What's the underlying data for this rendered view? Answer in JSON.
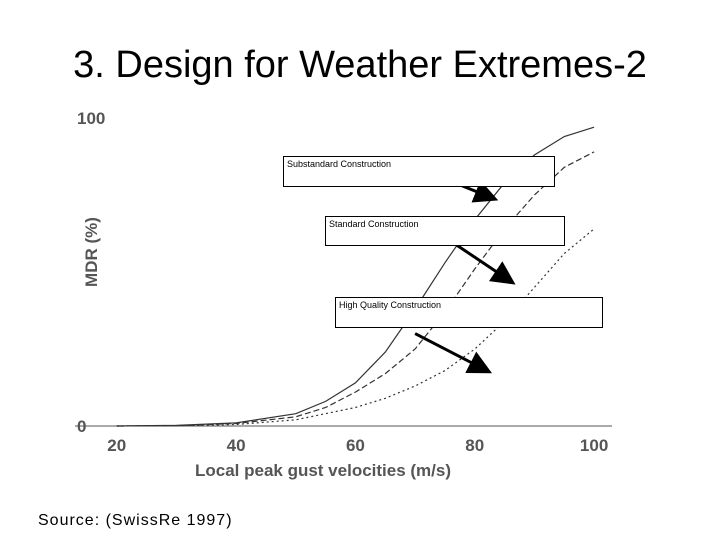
{
  "slide": {
    "title": "3. Design for Weather Extremes-2"
  },
  "source": "Source: (SwissRe 1997)",
  "chart_data": {
    "type": "line",
    "title": "",
    "xlabel": "Local peak gust velocities (m/s)",
    "ylabel": "MDR (%)",
    "xlim": [
      13,
      103
    ],
    "ylim": [
      0,
      100
    ],
    "x_ticks": [
      20,
      40,
      60,
      80,
      100
    ],
    "y_ticks": [
      0,
      100
    ],
    "grid": false,
    "series": [
      {
        "name": "Substandard Construction",
        "style": "solid",
        "x": [
          20,
          30,
          40,
          50,
          55,
          60,
          65,
          70,
          75,
          80,
          85,
          90,
          95,
          100
        ],
        "y": [
          0,
          0.2,
          1,
          4,
          8,
          14,
          24,
          38,
          53,
          67,
          79,
          88,
          94,
          97
        ]
      },
      {
        "name": "Standard Construction",
        "style": "dashed",
        "x": [
          20,
          30,
          40,
          50,
          55,
          60,
          65,
          70,
          75,
          80,
          85,
          90,
          95,
          100
        ],
        "y": [
          0,
          0.1,
          0.8,
          3,
          6,
          11,
          17,
          25,
          37,
          51,
          64,
          75,
          84,
          89
        ]
      },
      {
        "name": "High Quality Construction",
        "style": "dotted",
        "x": [
          20,
          30,
          40,
          50,
          60,
          65,
          70,
          75,
          80,
          85,
          90,
          95,
          100
        ],
        "y": [
          0,
          0.1,
          0.5,
          2,
          6,
          9,
          13,
          18,
          25,
          34,
          45,
          56,
          64
        ]
      }
    ],
    "annotations": [
      {
        "text": "Substandard Construction",
        "arrow_from": [
          74,
          81
        ],
        "arrow_to": [
          83,
          74
        ]
      },
      {
        "text": "Standard Construction",
        "arrow_from": [
          76,
          60
        ],
        "arrow_to": [
          86,
          47
        ]
      },
      {
        "text": "High Quality Construction",
        "arrow_from": [
          70,
          30
        ],
        "arrow_to": [
          82,
          18
        ]
      }
    ]
  }
}
